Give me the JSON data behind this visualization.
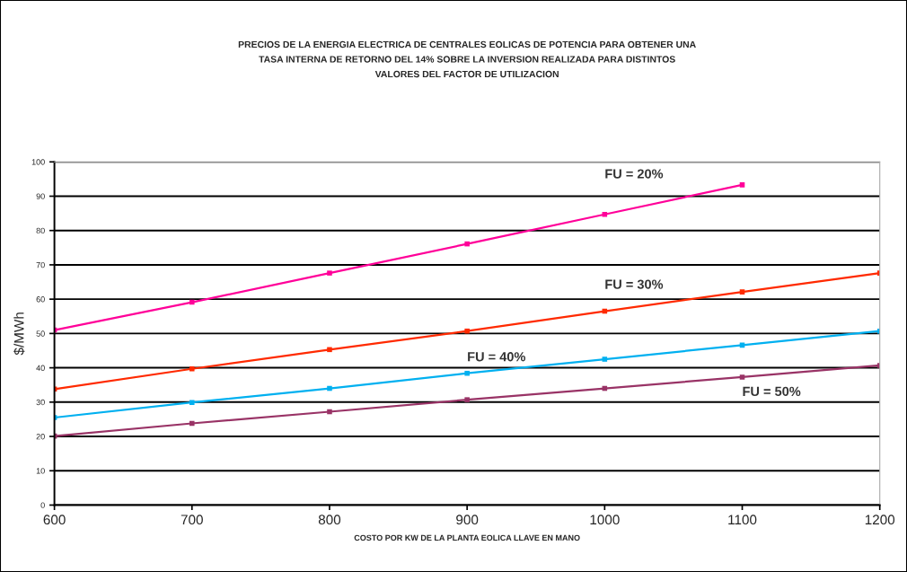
{
  "chart_data": {
    "type": "line",
    "title": "PRECIOS DE LA ENERGIA ELECTRICA DE CENTRALES EOLICAS DE POTENCIA PARA OBTENER UNA\nTASA INTERNA DE RETORNO DEL 14% SOBRE LA INVERSION REALIZADA PARA DISTINTOS\nVALORES DEL FACTOR DE UTILIZACION",
    "xlabel": "COSTO POR KW DE LA PLANTA EOLICA LLAVE EN MANO",
    "ylabel": "$/MWh",
    "x": [
      600,
      700,
      800,
      900,
      1000,
      1100,
      1200
    ],
    "series": [
      {
        "name": "FU = 20%",
        "color": "#ff0099",
        "values": [
          51.0,
          59.1,
          67.6,
          76.1,
          84.7,
          93.3,
          null
        ]
      },
      {
        "name": "FU = 30%",
        "color": "#ff2a00",
        "values": [
          33.8,
          39.7,
          45.3,
          50.7,
          56.5,
          62.1,
          67.6
        ]
      },
      {
        "name": "FU = 40%",
        "color": "#00b0f0",
        "values": [
          25.5,
          29.9,
          34.0,
          38.4,
          42.5,
          46.6,
          50.7
        ]
      },
      {
        "name": "FU = 50%",
        "color": "#993366",
        "values": [
          20.1,
          23.8,
          27.2,
          30.7,
          34.0,
          37.3,
          40.7
        ]
      }
    ],
    "xlim": [
      600,
      1200
    ],
    "xticks": [
      600,
      700,
      800,
      900,
      1000,
      1100,
      1200
    ],
    "ylim": [
      0,
      100
    ],
    "yticks": [
      0,
      10,
      20,
      30,
      40,
      50,
      60,
      70,
      80,
      90,
      100
    ],
    "grid": "y",
    "legend": false,
    "marker": "square",
    "line_style": "solid"
  }
}
